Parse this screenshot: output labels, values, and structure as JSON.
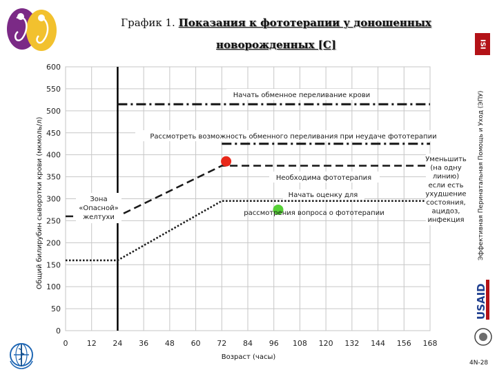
{
  "title": {
    "prefix": "График 1.",
    "main": "Показания к фототерапии у доношенных",
    "line2": "новорожденных [C]"
  },
  "sidebar": {
    "org": "Эффективная Перинатальная Помощь и Уход (ЭПУ)",
    "isi_badge": "ISI",
    "usaid": "USAID",
    "page_number": "4N-28"
  },
  "colors": {
    "point_red": "#e8281a",
    "point_green": "#56d136",
    "isi_red": "#b31217",
    "usaid_blue": "#1f3f8f"
  },
  "icons": [
    "perinatal-logo-icon",
    "who-emblem-icon",
    "eiu-logo-icon",
    "usaid-logo-icon"
  ],
  "chart_data": {
    "type": "line",
    "xlabel": "Возраст (часы)",
    "ylabel": "Общий билирубин сыворотки крови (мкмоль/л)",
    "xlim": [
      0,
      168
    ],
    "ylim": [
      0,
      600
    ],
    "x_ticks": [
      0,
      12,
      24,
      36,
      48,
      60,
      72,
      84,
      96,
      108,
      120,
      132,
      144,
      156,
      168
    ],
    "y_ticks": [
      0,
      50,
      100,
      150,
      200,
      250,
      300,
      350,
      400,
      450,
      500,
      550,
      600
    ],
    "grid": true,
    "vertical_marker_x": 24,
    "series": [
      {
        "label": "Начать обменное переливание крови",
        "style": "dash-dot",
        "points": [
          [
            24,
            515
          ],
          [
            168,
            515
          ]
        ]
      },
      {
        "label": "Рассмотреть возможность обменного переливания при неудаче фототерапии",
        "style": "dash-dot",
        "points": [
          [
            72,
            425
          ],
          [
            168,
            425
          ]
        ]
      },
      {
        "label": "Необходима фототерапия",
        "style": "dashed",
        "points": [
          [
            0,
            260
          ],
          [
            24,
            260
          ],
          [
            72,
            375
          ],
          [
            168,
            375
          ]
        ]
      },
      {
        "label": "Начать оценку для рассмотрения вопроса о фототерапии",
        "style": "dotted",
        "points": [
          [
            0,
            160
          ],
          [
            24,
            160
          ],
          [
            72,
            295
          ],
          [
            168,
            295
          ]
        ]
      }
    ],
    "points": [
      {
        "x": 74,
        "y": 385,
        "color": "red"
      },
      {
        "x": 98,
        "y": 275,
        "color": "green"
      }
    ],
    "annotations": {
      "danger_zone": [
        "Зона",
        "«Опасной»",
        "желтухи"
      ],
      "reduce": [
        "Уменьшить",
        "(на одну",
        "линию)",
        "если есть",
        "ухудшение",
        "состояния,",
        "ацидоз,",
        "инфекция"
      ],
      "start_assessment": [
        "Начать оценку для",
        "рассмотрения вопроса о фототерапии"
      ]
    }
  }
}
